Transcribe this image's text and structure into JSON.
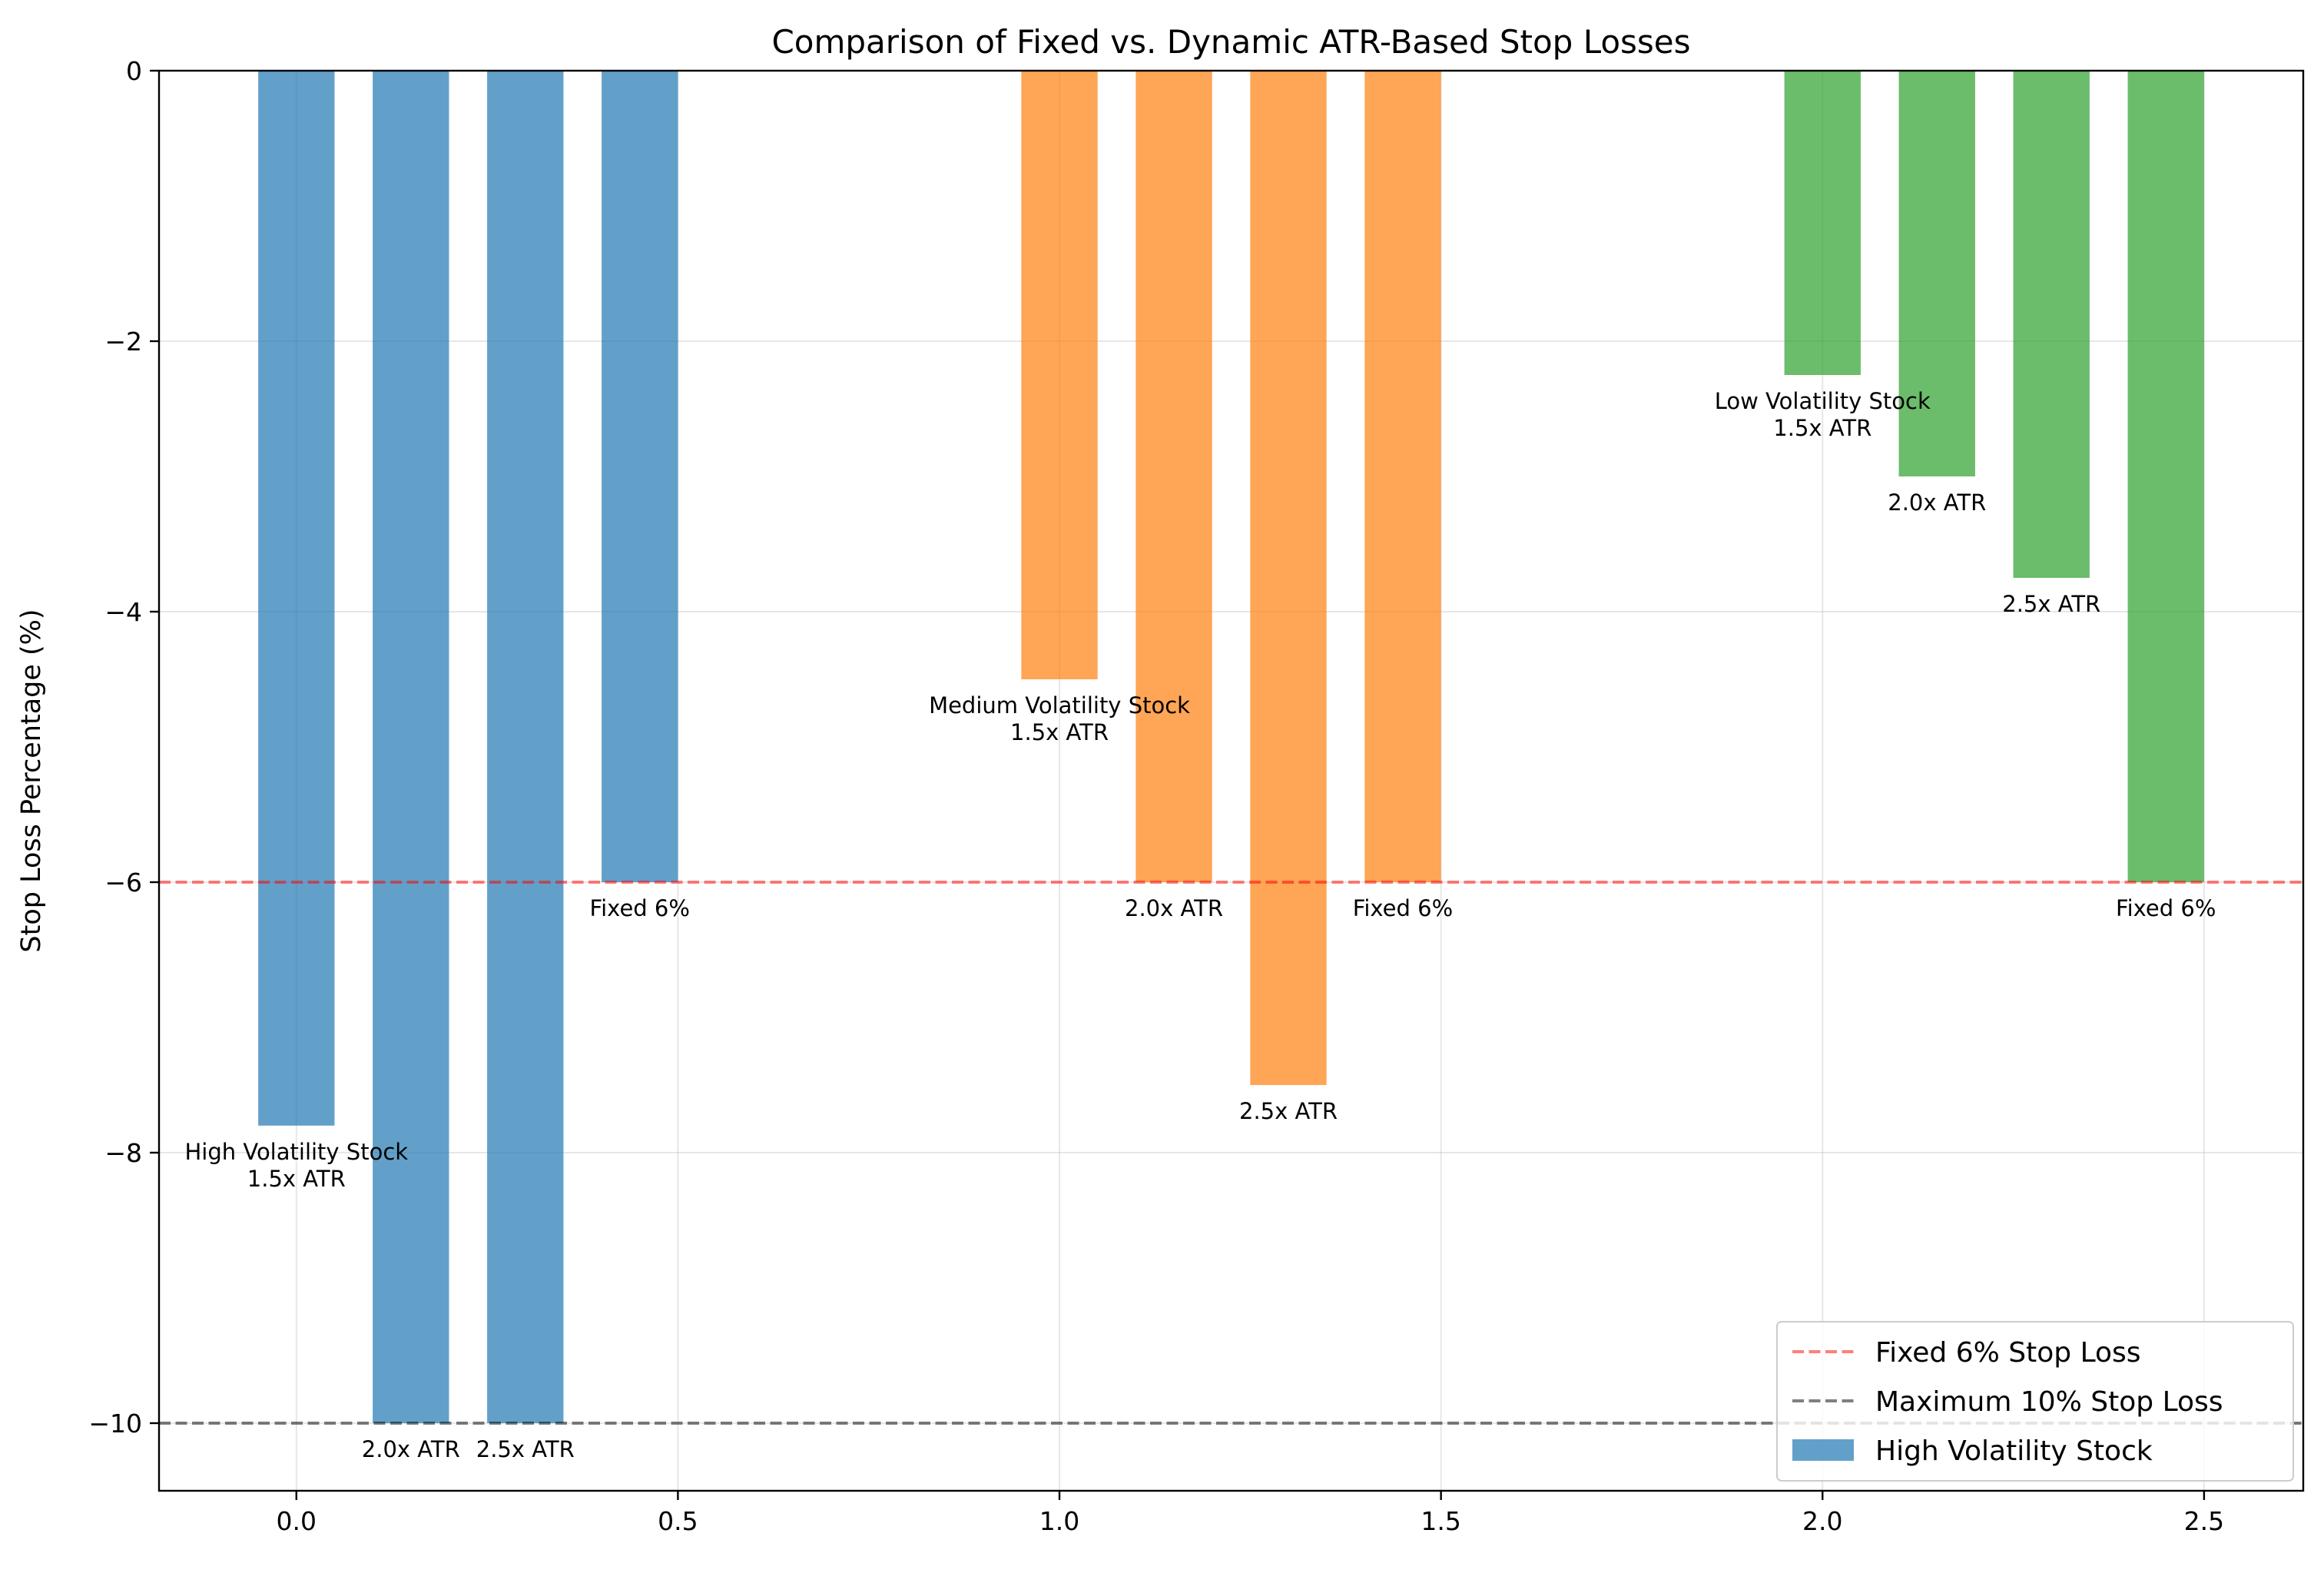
{
  "chart_data": {
    "type": "bar",
    "title": "Comparison of Fixed vs. Dynamic ATR-Based Stop Losses",
    "xlabel": "",
    "ylabel": "Stop Loss Percentage (%)",
    "xlim": [
      -0.18,
      2.63
    ],
    "ylim": [
      -10.5,
      0
    ],
    "xticks": [
      0.0,
      0.5,
      1.0,
      1.5,
      2.0,
      2.5
    ],
    "xtick_labels": [
      "0.0",
      "0.5",
      "1.0",
      "1.5",
      "2.0",
      "2.5"
    ],
    "yticks": [
      0,
      -2,
      -4,
      -6,
      -8,
      -10
    ],
    "ytick_labels": [
      "0",
      "−2",
      "−4",
      "−6",
      "−8",
      "−10"
    ],
    "grid": true,
    "bar_width": 0.1,
    "groups": [
      {
        "name": "High Volatility Stock",
        "color": "#1f77b4",
        "bars": [
          {
            "x": 0.0,
            "value": -7.8,
            "label": [
              "High Volatility Stock",
              "1.5x ATR"
            ]
          },
          {
            "x": 0.15,
            "value": -10.0,
            "label": [
              "2.0x ATR"
            ]
          },
          {
            "x": 0.3,
            "value": -10.0,
            "label": [
              "2.5x ATR"
            ]
          },
          {
            "x": 0.45,
            "value": -6.0,
            "label": [
              "Fixed 6%"
            ]
          }
        ]
      },
      {
        "name": "Medium Volatility Stock",
        "color": "#ff7f0e",
        "bars": [
          {
            "x": 1.0,
            "value": -4.5,
            "label": [
              "Medium Volatility Stock",
              "1.5x ATR"
            ]
          },
          {
            "x": 1.15,
            "value": -6.0,
            "label": [
              "2.0x ATR"
            ]
          },
          {
            "x": 1.3,
            "value": -7.5,
            "label": [
              "2.5x ATR"
            ]
          },
          {
            "x": 1.45,
            "value": -6.0,
            "label": [
              "Fixed 6%"
            ]
          }
        ]
      },
      {
        "name": "Low Volatility Stock",
        "color": "#2ca02c",
        "bars": [
          {
            "x": 2.0,
            "value": -2.25,
            "label": [
              "Low Volatility Stock",
              "1.5x ATR"
            ]
          },
          {
            "x": 2.15,
            "value": -3.0,
            "label": [
              "2.0x ATR"
            ]
          },
          {
            "x": 2.3,
            "value": -3.75,
            "label": [
              "2.5x ATR"
            ]
          },
          {
            "x": 2.45,
            "value": -6.0,
            "label": [
              "Fixed 6%"
            ]
          }
        ]
      }
    ],
    "hlines": [
      {
        "y": -6,
        "color": "#ff0000",
        "label": "Fixed 6% Stop Loss"
      },
      {
        "y": -10,
        "color": "#000000",
        "label": "Maximum 10% Stop Loss"
      }
    ],
    "legend": {
      "location": "lower-right",
      "entries": [
        {
          "label": "Fixed 6% Stop Loss",
          "kind": "line",
          "color": "#ff0000"
        },
        {
          "label": "Maximum 10% Stop Loss",
          "kind": "line",
          "color": "#000000"
        },
        {
          "label": "High Volatility Stock",
          "kind": "patch",
          "color": "#1f77b4"
        }
      ]
    }
  }
}
